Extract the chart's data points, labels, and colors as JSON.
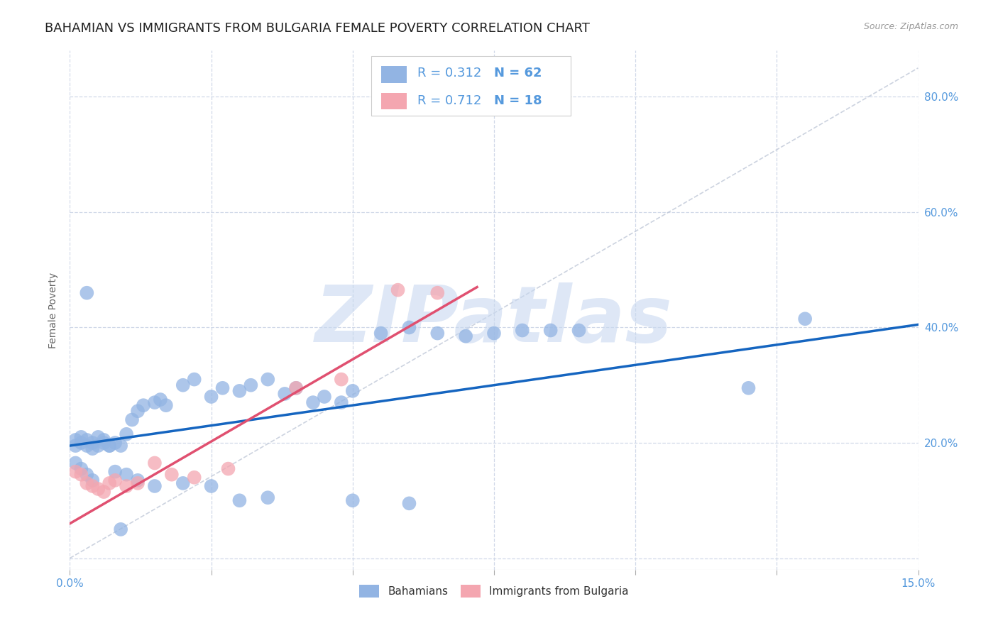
{
  "title": "BAHAMIAN VS IMMIGRANTS FROM BULGARIA FEMALE POVERTY CORRELATION CHART",
  "source": "Source: ZipAtlas.com",
  "ylabel_label": "Female Poverty",
  "xlim": [
    0,
    0.15
  ],
  "ylim": [
    -0.02,
    0.88
  ],
  "yticks": [
    0.0,
    0.2,
    0.4,
    0.6,
    0.8
  ],
  "ytick_labels": [
    "",
    "20.0%",
    "40.0%",
    "60.0%",
    "80.0%"
  ],
  "xticks": [
    0.0,
    0.025,
    0.05,
    0.075,
    0.1,
    0.125,
    0.15
  ],
  "xtick_labels": [
    "0.0%",
    "",
    "",
    "",
    "",
    "",
    "15.0%"
  ],
  "series1_color": "#92b4e3",
  "series2_color": "#f4a6b0",
  "series1_label": "Bahamians",
  "series2_label": "Immigrants from Bulgaria",
  "R1": "0.312",
  "N1": "62",
  "R2": "0.712",
  "N2": "18",
  "trend1_color": "#1565c0",
  "trend2_color": "#e05070",
  "background_color": "#ffffff",
  "grid_color": "#d0d8e8",
  "watermark_text": "ZIPatlas",
  "watermark_color": "#c8d8f0",
  "ref_line_color": "#c0c8d8",
  "title_fontsize": 13,
  "axis_label_fontsize": 10,
  "tick_fontsize": 11,
  "legend_fontsize": 13,
  "blue_scatter_x": [
    0.001,
    0.002,
    0.003,
    0.004,
    0.005,
    0.006,
    0.007,
    0.008,
    0.009,
    0.001,
    0.002,
    0.003,
    0.004,
    0.005,
    0.006,
    0.007,
    0.01,
    0.011,
    0.012,
    0.013,
    0.015,
    0.016,
    0.017,
    0.02,
    0.022,
    0.025,
    0.027,
    0.03,
    0.032,
    0.035,
    0.038,
    0.04,
    0.043,
    0.045,
    0.048,
    0.05,
    0.055,
    0.06,
    0.065,
    0.07,
    0.075,
    0.08,
    0.085,
    0.09,
    0.001,
    0.002,
    0.003,
    0.004,
    0.008,
    0.01,
    0.012,
    0.015,
    0.02,
    0.025,
    0.03,
    0.035,
    0.05,
    0.06,
    0.12,
    0.13,
    0.003,
    0.009
  ],
  "blue_scatter_y": [
    0.195,
    0.2,
    0.205,
    0.19,
    0.195,
    0.2,
    0.195,
    0.2,
    0.195,
    0.205,
    0.21,
    0.195,
    0.2,
    0.21,
    0.205,
    0.195,
    0.215,
    0.24,
    0.255,
    0.265,
    0.27,
    0.275,
    0.265,
    0.3,
    0.31,
    0.28,
    0.295,
    0.29,
    0.3,
    0.31,
    0.285,
    0.295,
    0.27,
    0.28,
    0.27,
    0.29,
    0.39,
    0.4,
    0.39,
    0.385,
    0.39,
    0.395,
    0.395,
    0.395,
    0.165,
    0.155,
    0.145,
    0.135,
    0.15,
    0.145,
    0.135,
    0.125,
    0.13,
    0.125,
    0.1,
    0.105,
    0.1,
    0.095,
    0.295,
    0.415,
    0.46,
    0.05
  ],
  "pink_scatter_x": [
    0.001,
    0.002,
    0.003,
    0.004,
    0.005,
    0.006,
    0.007,
    0.008,
    0.01,
    0.012,
    0.015,
    0.018,
    0.022,
    0.028,
    0.04,
    0.048,
    0.058,
    0.065
  ],
  "pink_scatter_y": [
    0.15,
    0.145,
    0.13,
    0.125,
    0.12,
    0.115,
    0.13,
    0.135,
    0.125,
    0.13,
    0.165,
    0.145,
    0.14,
    0.155,
    0.295,
    0.31,
    0.465,
    0.46
  ],
  "trend1_x0": 0.0,
  "trend1_x1": 0.15,
  "trend1_y0": 0.195,
  "trend1_y1": 0.405,
  "trend2_x0": 0.0,
  "trend2_x1": 0.072,
  "trend2_y0": 0.06,
  "trend2_y1": 0.47
}
